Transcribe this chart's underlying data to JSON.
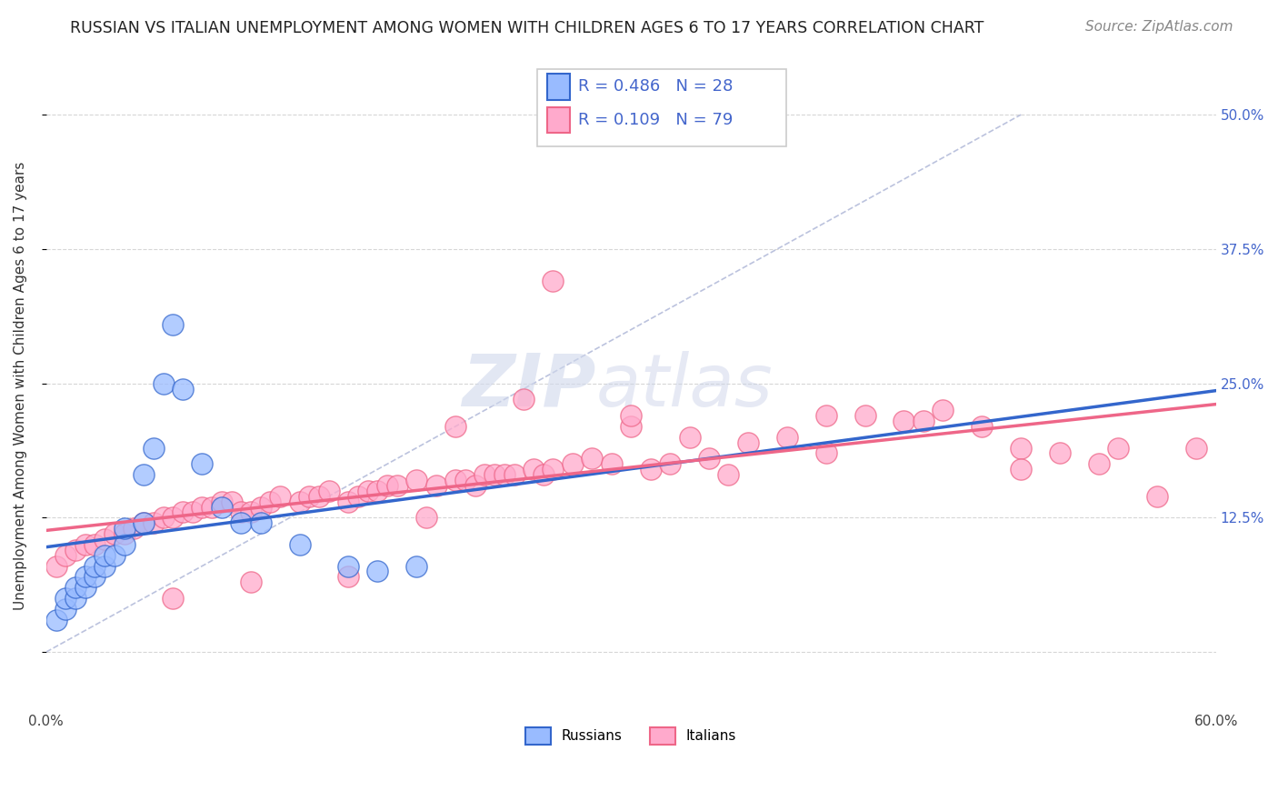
{
  "title": "RUSSIAN VS ITALIAN UNEMPLOYMENT AMONG WOMEN WITH CHILDREN AGES 6 TO 17 YEARS CORRELATION CHART",
  "source": "Source: ZipAtlas.com",
  "ylabel": "Unemployment Among Women with Children Ages 6 to 17 years",
  "xlim": [
    0.0,
    0.6
  ],
  "ylim": [
    -0.05,
    0.545
  ],
  "yticks": [
    0.0,
    0.125,
    0.25,
    0.375,
    0.5
  ],
  "ytick_right_labels": [
    "",
    "12.5%",
    "25.0%",
    "37.5%",
    "50.0%"
  ],
  "background_color": "#ffffff",
  "grid_color": "#cccccc",
  "diagonal_color": "#b0b8d8",
  "russian_color": "#3366cc",
  "russian_fill": "#99bbff",
  "italian_color": "#ee6688",
  "italian_fill": "#ffaacc",
  "legend_R_russian": "R = 0.486",
  "legend_N_russian": "N = 28",
  "legend_R_italian": "R = 0.109",
  "legend_N_italian": "N = 79",
  "russian_x": [
    0.005,
    0.01,
    0.01,
    0.015,
    0.015,
    0.02,
    0.02,
    0.025,
    0.025,
    0.03,
    0.03,
    0.035,
    0.04,
    0.04,
    0.05,
    0.05,
    0.055,
    0.06,
    0.065,
    0.07,
    0.08,
    0.09,
    0.1,
    0.11,
    0.13,
    0.155,
    0.17,
    0.19
  ],
  "russian_y": [
    0.03,
    0.04,
    0.05,
    0.05,
    0.06,
    0.06,
    0.07,
    0.07,
    0.08,
    0.08,
    0.09,
    0.09,
    0.1,
    0.115,
    0.12,
    0.165,
    0.19,
    0.25,
    0.305,
    0.245,
    0.175,
    0.135,
    0.12,
    0.12,
    0.1,
    0.08,
    0.075,
    0.08
  ],
  "italian_x": [
    0.005,
    0.01,
    0.015,
    0.02,
    0.025,
    0.03,
    0.035,
    0.04,
    0.045,
    0.05,
    0.055,
    0.06,
    0.065,
    0.07,
    0.075,
    0.08,
    0.085,
    0.09,
    0.095,
    0.1,
    0.105,
    0.11,
    0.115,
    0.12,
    0.13,
    0.135,
    0.14,
    0.145,
    0.155,
    0.16,
    0.165,
    0.17,
    0.175,
    0.18,
    0.19,
    0.2,
    0.21,
    0.215,
    0.22,
    0.225,
    0.23,
    0.235,
    0.24,
    0.25,
    0.255,
    0.26,
    0.27,
    0.28,
    0.29,
    0.3,
    0.31,
    0.32,
    0.33,
    0.34,
    0.36,
    0.38,
    0.4,
    0.42,
    0.44,
    0.46,
    0.48,
    0.5,
    0.52,
    0.54,
    0.26,
    0.3,
    0.35,
    0.4,
    0.45,
    0.5,
    0.55,
    0.57,
    0.59,
    0.21,
    0.245,
    0.195,
    0.155,
    0.105,
    0.065
  ],
  "italian_y": [
    0.08,
    0.09,
    0.095,
    0.1,
    0.1,
    0.105,
    0.11,
    0.11,
    0.115,
    0.12,
    0.12,
    0.125,
    0.125,
    0.13,
    0.13,
    0.135,
    0.135,
    0.14,
    0.14,
    0.13,
    0.13,
    0.135,
    0.14,
    0.145,
    0.14,
    0.145,
    0.145,
    0.15,
    0.14,
    0.145,
    0.15,
    0.15,
    0.155,
    0.155,
    0.16,
    0.155,
    0.16,
    0.16,
    0.155,
    0.165,
    0.165,
    0.165,
    0.165,
    0.17,
    0.165,
    0.17,
    0.175,
    0.18,
    0.175,
    0.21,
    0.17,
    0.175,
    0.2,
    0.18,
    0.195,
    0.2,
    0.22,
    0.22,
    0.215,
    0.225,
    0.21,
    0.19,
    0.185,
    0.175,
    0.345,
    0.22,
    0.165,
    0.185,
    0.215,
    0.17,
    0.19,
    0.145,
    0.19,
    0.21,
    0.235,
    0.125,
    0.07,
    0.065,
    0.05
  ],
  "title_fontsize": 12.5,
  "source_fontsize": 11,
  "axis_label_fontsize": 11,
  "tick_fontsize": 11,
  "legend_fontsize": 13,
  "watermark_zip": "ZIP",
  "watermark_atlas": "atlas"
}
